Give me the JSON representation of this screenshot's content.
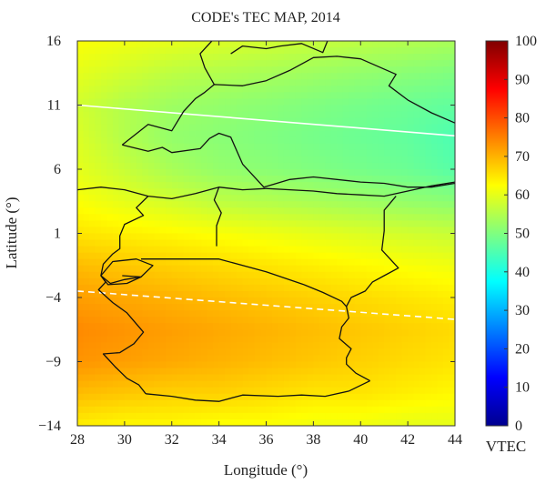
{
  "chart_data": {
    "type": "heatmap",
    "title": "CODE's TEC MAP, 2014",
    "xlabel": "Longitude (°)",
    "ylabel": "Latitude (°)",
    "xlim": [
      28,
      44
    ],
    "ylim": [
      -14,
      16
    ],
    "x_ticks": [
      28,
      30,
      32,
      34,
      36,
      38,
      40,
      42,
      44
    ],
    "y_ticks": [
      16,
      11,
      6,
      1,
      -4,
      -9,
      -14
    ],
    "y_tick_labels": [
      "16",
      "11",
      "6",
      "1",
      "−4",
      "−9",
      "−14"
    ],
    "colorbar": {
      "label": "VTEC",
      "range": [
        0,
        100
      ],
      "ticks": [
        0,
        10,
        20,
        30,
        40,
        50,
        60,
        70,
        80,
        90,
        100
      ],
      "colormap": "jet"
    },
    "field_grid": {
      "longitudes": [
        28,
        30,
        32,
        34,
        36,
        38,
        40,
        42,
        44
      ],
      "latitudes": [
        16,
        13.5,
        11,
        8.5,
        6,
        3.5,
        1,
        -1.5,
        -4,
        -6.5,
        -9,
        -11.5,
        -14
      ],
      "values": [
        [
          62,
          61,
          60,
          59,
          58,
          57,
          56,
          55,
          54
        ],
        [
          60,
          58,
          56,
          55,
          54,
          53,
          52,
          51,
          50
        ],
        [
          58,
          55,
          53,
          52,
          51,
          50,
          49,
          48,
          47
        ],
        [
          59,
          55,
          52,
          51,
          50,
          49,
          48,
          47,
          45
        ],
        [
          60,
          57,
          54,
          52,
          51,
          50,
          49,
          48,
          46
        ],
        [
          62,
          60,
          58,
          56,
          55,
          54,
          53,
          52,
          51
        ],
        [
          65,
          64,
          63,
          62,
          61,
          60,
          59,
          58,
          57
        ],
        [
          69,
          68,
          67,
          66,
          65,
          64,
          63,
          62,
          61
        ],
        [
          72,
          71,
          70,
          69,
          68,
          67,
          66,
          65,
          64
        ],
        [
          74,
          73,
          72,
          71,
          70,
          69,
          68,
          67,
          66
        ],
        [
          73,
          72,
          71,
          70,
          69,
          68,
          67,
          66,
          65
        ],
        [
          69,
          68,
          67,
          67,
          66,
          65,
          65,
          64,
          63
        ],
        [
          64,
          63,
          63,
          62,
          62,
          61,
          61,
          60,
          60
        ]
      ]
    },
    "lines": [
      {
        "style": "solid-white",
        "lon": [
          28,
          44
        ],
        "lat": [
          11.0,
          8.6
        ]
      },
      {
        "style": "dashed-white",
        "lon": [
          28,
          36,
          44
        ],
        "lat": [
          -3.5,
          -4.6,
          -5.7
        ]
      }
    ],
    "borders": [
      {
        "lon": [
          28,
          29,
          30,
          31,
          32,
          33,
          34,
          35,
          36
        ],
        "lat": [
          4.4,
          4.6,
          4.4,
          3.9,
          3.7,
          4.1,
          4.6,
          4.4,
          4.5
        ]
      },
      {
        "lon": [
          36,
          37,
          38,
          39,
          40,
          41,
          42,
          43,
          44
        ],
        "lat": [
          4.5,
          4.4,
          4.3,
          4.1,
          4.0,
          3.9,
          4.3,
          4.7,
          5.0
        ]
      },
      {
        "lon": [
          34,
          33.8,
          34.1,
          33.9,
          33.9
        ],
        "lat": [
          4.6,
          3.6,
          2.6,
          1.6,
          0.0
        ]
      },
      {
        "lon": [
          31.0,
          30.5,
          30.8,
          30.0,
          29.8,
          29.8,
          29.5,
          29.1,
          29.0,
          29.2
        ],
        "lat": [
          3.9,
          3.0,
          2.4,
          1.7,
          0.8,
          -0.2,
          -0.6,
          -1.4,
          -2.3,
          -2.8
        ]
      },
      {
        "lon": [
          30.7,
          32.0,
          34.0,
          36.0,
          37.6
        ],
        "lat": [
          -1.0,
          -1.0,
          -1.0,
          -2.0,
          -3.0
        ]
      },
      {
        "lon": [
          37.6,
          38.4,
          39.2,
          39.4
        ],
        "lat": [
          -3.0,
          -3.6,
          -4.3,
          -4.7
        ]
      },
      {
        "lon": [
          41.5,
          41.0,
          41.0,
          40.9,
          41.6,
          41.0,
          40.5,
          40.2,
          39.6,
          39.4
        ],
        "lat": [
          3.9,
          2.8,
          1.2,
          -0.3,
          -1.7,
          -2.3,
          -2.8,
          -3.5,
          -4.0,
          -4.7
        ]
      },
      {
        "lon": [
          29.2,
          28.9,
          29.5,
          30.1,
          30.8,
          30.4,
          29.8,
          29.1,
          29.6,
          30.1,
          30.6,
          30.9
        ],
        "lat": [
          -2.8,
          -3.4,
          -4.4,
          -5.2,
          -6.7,
          -7.6,
          -8.3,
          -8.4,
          -9.4,
          -10.3,
          -10.8,
          -11.5
        ]
      },
      {
        "lon": [
          30.9,
          32.0,
          33.0,
          34.0,
          35.0,
          36.5,
          37.5,
          38.5,
          39.5,
          40.4
        ],
        "lat": [
          -11.5,
          -11.7,
          -12.0,
          -12.1,
          -11.6,
          -11.7,
          -11.6,
          -11.7,
          -11.3,
          -10.5
        ]
      },
      {
        "lon": [
          39.4,
          39.5,
          39.2,
          39.1,
          39.6,
          39.4,
          39.4,
          39.8,
          40.4
        ],
        "lat": [
          -4.7,
          -5.6,
          -6.3,
          -7.2,
          -8.0,
          -8.7,
          -9.2,
          -9.9,
          -10.5
        ]
      },
      {
        "lon": [
          29.0,
          29.5,
          30.5,
          31.2,
          30.7,
          30.1,
          29.3,
          29.0
        ],
        "lat": [
          -2.3,
          -1.2,
          -1.0,
          -1.5,
          -2.4,
          -2.9,
          -3.0,
          -2.3
        ]
      },
      {
        "lon": [
          29.0,
          29.4,
          30.0,
          30.7,
          29.9
        ],
        "lat": [
          -2.3,
          -2.9,
          -2.6,
          -2.4,
          -2.3
        ]
      },
      {
        "lon": [
          29.9,
          31.0,
          32.0,
          32.5,
          33.0,
          33.4,
          33.8,
          35.0,
          36.0,
          37.0,
          38.0,
          39.0,
          40.0,
          41.5,
          41.2,
          42.0,
          43.0,
          44.0
        ],
        "lat": [
          7.9,
          9.5,
          9.0,
          10.5,
          11.5,
          12.0,
          12.6,
          12.5,
          12.9,
          13.7,
          14.7,
          14.8,
          14.6,
          13.4,
          12.5,
          11.4,
          10.4,
          9.6
        ]
      },
      {
        "lon": [
          29.9,
          31.0,
          31.6,
          32.0,
          33.2,
          33.6,
          34.0,
          34.5,
          35.0,
          35.9,
          37.0,
          38.0,
          40.0,
          41.0,
          42.0,
          43.0,
          44.0
        ],
        "lat": [
          7.9,
          7.4,
          7.7,
          7.3,
          7.6,
          8.4,
          8.8,
          8.5,
          6.4,
          4.6,
          5.2,
          5.4,
          5.0,
          4.9,
          4.6,
          4.6,
          4.9
        ]
      },
      {
        "lon": [
          33.8,
          33.4,
          33.2,
          33.7
        ],
        "lat": [
          12.6,
          13.9,
          15.0,
          16.0
        ]
      },
      {
        "lon": [
          34.5,
          35.0,
          36.0,
          36.6,
          37.5,
          38.4,
          38.6
        ],
        "lat": [
          15.0,
          15.6,
          15.4,
          15.6,
          15.8,
          15.1,
          16.0
        ]
      }
    ]
  }
}
